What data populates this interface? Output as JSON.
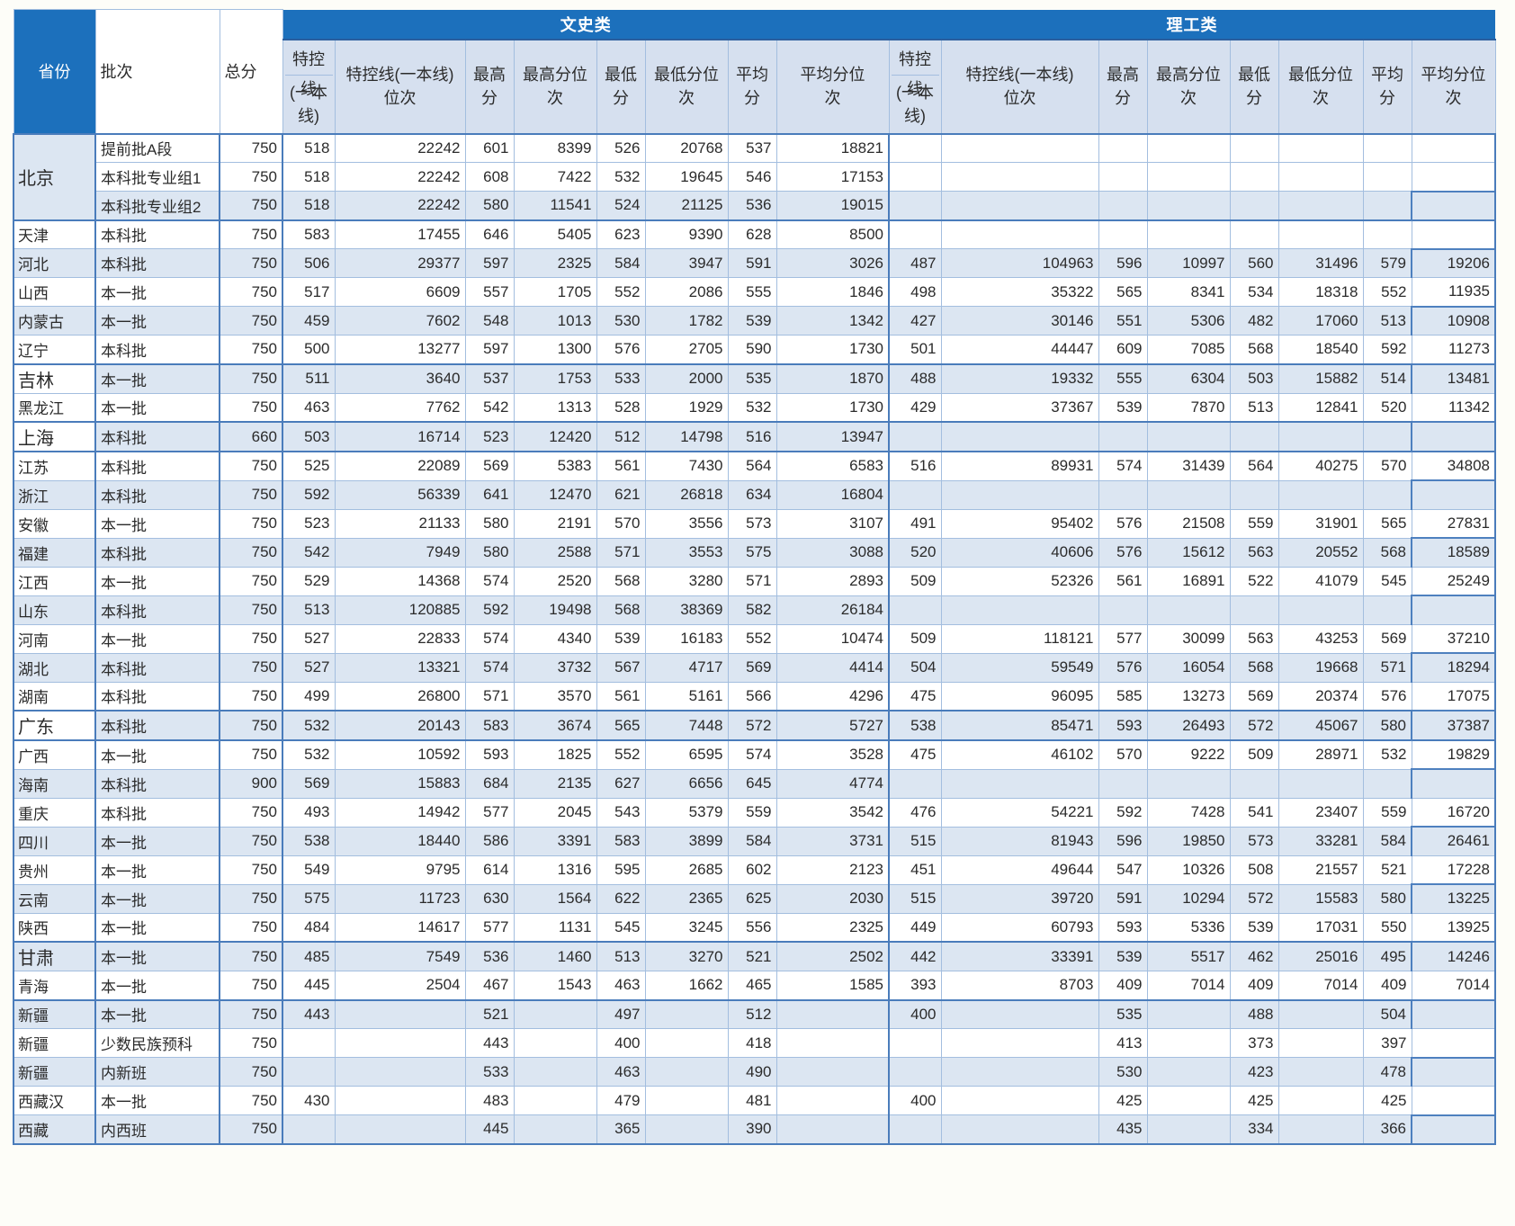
{
  "colors": {
    "band_blue": "#1c70bc",
    "band_underline": "#2b5e9e",
    "subheader_bg": "#d6e0ef",
    "row_blue": "#dce6f2",
    "border_light": "#a3bedf",
    "border_medium": "#4a7cbb",
    "band_text": "#ffffff",
    "body_text": "#2b2b2b"
  },
  "header": {
    "province_label": "省份",
    "batch_label": "批次",
    "total_label": "总分",
    "group_wen": "文史类",
    "group_li": "理工类",
    "sub": {
      "tekong_top": "特控线",
      "tekong_bottom": "(一本线)",
      "tekong_rank": "特控线(一本线)位次",
      "max": "最高分",
      "max_rank": "最高分位次",
      "min": "最低分",
      "min_rank": "最低分位次",
      "avg": "平均分",
      "avg_rank": "平均分位次"
    }
  },
  "rows": [
    {
      "province": "北京",
      "province_rowspan": 3,
      "province_bg": "blue",
      "province_emphasis": true,
      "batch": "提前批A段",
      "total": 750,
      "shade": "white",
      "block_start": false,
      "wen": [
        518,
        22242,
        601,
        8399,
        526,
        20768,
        537,
        18821
      ],
      "li": [
        "",
        "",
        "",
        "",
        "",
        "",
        "",
        ""
      ]
    },
    {
      "batch": "本科批专业组1",
      "total": 750,
      "shade": "white",
      "block_start": false,
      "wen": [
        518,
        22242,
        608,
        7422,
        532,
        19645,
        546,
        17153
      ],
      "li": [
        "",
        "",
        "",
        "",
        "",
        "",
        "",
        ""
      ]
    },
    {
      "batch": "本科批专业组2",
      "total": 750,
      "shade": "blue",
      "block_start": false,
      "wen": [
        518,
        22242,
        580,
        11541,
        524,
        21125,
        536,
        19015
      ],
      "li": [
        "",
        "",
        "",
        "",
        "",
        "",
        "",
        ""
      ]
    },
    {
      "province": "天津",
      "batch": "本科批",
      "total": 750,
      "shade": "white",
      "block_start": true,
      "wen": [
        583,
        17455,
        646,
        5405,
        623,
        9390,
        628,
        8500
      ],
      "li": [
        "",
        "",
        "",
        "",
        "",
        "",
        "",
        ""
      ]
    },
    {
      "province": "河北",
      "batch": "本科批",
      "total": 750,
      "shade": "blue",
      "block_start": false,
      "wen": [
        506,
        29377,
        597,
        2325,
        584,
        3947,
        591,
        3026
      ],
      "li": [
        487,
        104963,
        596,
        10997,
        560,
        31496,
        579,
        19206
      ]
    },
    {
      "province": "山西",
      "batch": "本一批",
      "total": 750,
      "shade": "white",
      "block_start": false,
      "wen": [
        517,
        6609,
        557,
        1705,
        552,
        2086,
        555,
        1846
      ],
      "li": [
        498,
        35322,
        565,
        8341,
        534,
        18318,
        552,
        11935
      ]
    },
    {
      "province": "内蒙古",
      "batch": "本一批",
      "total": 750,
      "shade": "blue",
      "block_start": false,
      "wen": [
        459,
        7602,
        548,
        1013,
        530,
        1782,
        539,
        1342
      ],
      "li": [
        427,
        30146,
        551,
        5306,
        482,
        17060,
        513,
        10908
      ]
    },
    {
      "province": "辽宁",
      "batch": "本科批",
      "total": 750,
      "shade": "white",
      "block_start": false,
      "wen": [
        500,
        13277,
        597,
        1300,
        576,
        2705,
        590,
        1730
      ],
      "li": [
        501,
        44447,
        609,
        7085,
        568,
        18540,
        592,
        11273
      ]
    },
    {
      "province": "吉林",
      "province_bg": "white",
      "province_emphasis": true,
      "batch": "本一批",
      "total": 750,
      "shade": "blue",
      "block_start": true,
      "wen": [
        511,
        3640,
        537,
        1753,
        533,
        2000,
        535,
        1870
      ],
      "li": [
        488,
        19332,
        555,
        6304,
        503,
        15882,
        514,
        13481
      ]
    },
    {
      "province": "黑龙江",
      "batch": "本一批",
      "total": 750,
      "shade": "white",
      "block_start": false,
      "wen": [
        463,
        7762,
        542,
        1313,
        528,
        1929,
        532,
        1730
      ],
      "li": [
        429,
        37367,
        539,
        7870,
        513,
        12841,
        520,
        11342
      ]
    },
    {
      "province": "上海",
      "province_bg": "white",
      "province_emphasis": true,
      "batch": "本科批",
      "total": 660,
      "shade": "blue",
      "block_start": true,
      "wen": [
        503,
        16714,
        523,
        12420,
        512,
        14798,
        516,
        13947
      ],
      "li": [
        "",
        "",
        "",
        "",
        "",
        "",
        "",
        ""
      ]
    },
    {
      "province": "江苏",
      "batch": "本科批",
      "total": 750,
      "shade": "white",
      "block_start": true,
      "wen": [
        525,
        22089,
        569,
        5383,
        561,
        7430,
        564,
        6583
      ],
      "li": [
        516,
        89931,
        574,
        31439,
        564,
        40275,
        570,
        34808
      ]
    },
    {
      "province": "浙江",
      "batch": "本科批",
      "total": 750,
      "shade": "blue",
      "block_start": false,
      "wen": [
        592,
        56339,
        641,
        12470,
        621,
        26818,
        634,
        16804
      ],
      "li": [
        "",
        "",
        "",
        "",
        "",
        "",
        "",
        ""
      ]
    },
    {
      "province": "安徽",
      "batch": "本一批",
      "total": 750,
      "shade": "white",
      "block_start": false,
      "wen": [
        523,
        21133,
        580,
        2191,
        570,
        3556,
        573,
        3107
      ],
      "li": [
        491,
        95402,
        576,
        21508,
        559,
        31901,
        565,
        27831
      ]
    },
    {
      "province": "福建",
      "batch": "本科批",
      "total": 750,
      "shade": "blue",
      "block_start": false,
      "wen": [
        542,
        7949,
        580,
        2588,
        571,
        3553,
        575,
        3088
      ],
      "li": [
        520,
        40606,
        576,
        15612,
        563,
        20552,
        568,
        18589
      ]
    },
    {
      "province": "江西",
      "batch": "本一批",
      "total": 750,
      "shade": "white",
      "block_start": false,
      "wen": [
        529,
        14368,
        574,
        2520,
        568,
        3280,
        571,
        2893
      ],
      "li": [
        509,
        52326,
        561,
        16891,
        522,
        41079,
        545,
        25249
      ]
    },
    {
      "province": "山东",
      "batch": "本科批",
      "total": 750,
      "shade": "blue",
      "block_start": false,
      "wen": [
        513,
        120885,
        592,
        19498,
        568,
        38369,
        582,
        26184
      ],
      "li": [
        "",
        "",
        "",
        "",
        "",
        "",
        "",
        ""
      ]
    },
    {
      "province": "河南",
      "batch": "本一批",
      "total": 750,
      "shade": "white",
      "block_start": false,
      "wen": [
        527,
        22833,
        574,
        4340,
        539,
        16183,
        552,
        10474
      ],
      "li": [
        509,
        118121,
        577,
        30099,
        563,
        43253,
        569,
        37210
      ]
    },
    {
      "province": "湖北",
      "batch": "本科批",
      "total": 750,
      "shade": "blue",
      "block_start": false,
      "wen": [
        527,
        13321,
        574,
        3732,
        567,
        4717,
        569,
        4414
      ],
      "li": [
        504,
        59549,
        576,
        16054,
        568,
        19668,
        571,
        18294
      ]
    },
    {
      "province": "湖南",
      "batch": "本科批",
      "total": 750,
      "shade": "white",
      "block_start": false,
      "wen": [
        499,
        26800,
        571,
        3570,
        561,
        5161,
        566,
        4296
      ],
      "li": [
        475,
        96095,
        585,
        13273,
        569,
        20374,
        576,
        17075
      ]
    },
    {
      "province": "广东",
      "province_bg": "white",
      "province_emphasis": true,
      "batch": "本科批",
      "total": 750,
      "shade": "blue",
      "block_start": true,
      "wen": [
        532,
        20143,
        583,
        3674,
        565,
        7448,
        572,
        5727
      ],
      "li": [
        538,
        85471,
        593,
        26493,
        572,
        45067,
        580,
        37387
      ]
    },
    {
      "province": "广西",
      "batch": "本一批",
      "total": 750,
      "shade": "white",
      "block_start": true,
      "wen": [
        532,
        10592,
        593,
        1825,
        552,
        6595,
        574,
        3528
      ],
      "li": [
        475,
        46102,
        570,
        9222,
        509,
        28971,
        532,
        19829
      ]
    },
    {
      "province": "海南",
      "batch": "本科批",
      "total": 900,
      "shade": "blue",
      "block_start": false,
      "wen": [
        569,
        15883,
        684,
        2135,
        627,
        6656,
        645,
        4774
      ],
      "li": [
        "",
        "",
        "",
        "",
        "",
        "",
        "",
        ""
      ]
    },
    {
      "province": "重庆",
      "batch": "本科批",
      "total": 750,
      "shade": "white",
      "block_start": false,
      "wen": [
        493,
        14942,
        577,
        2045,
        543,
        5379,
        559,
        3542
      ],
      "li": [
        476,
        54221,
        592,
        7428,
        541,
        23407,
        559,
        16720
      ]
    },
    {
      "province": "四川",
      "batch": "本一批",
      "total": 750,
      "shade": "blue",
      "block_start": false,
      "wen": [
        538,
        18440,
        586,
        3391,
        583,
        3899,
        584,
        3731
      ],
      "li": [
        515,
        81943,
        596,
        19850,
        573,
        33281,
        584,
        26461
      ]
    },
    {
      "province": "贵州",
      "batch": "本一批",
      "total": 750,
      "shade": "white",
      "block_start": false,
      "wen": [
        549,
        9795,
        614,
        1316,
        595,
        2685,
        602,
        2123
      ],
      "li": [
        451,
        49644,
        547,
        10326,
        508,
        21557,
        521,
        17228
      ]
    },
    {
      "province": "云南",
      "batch": "本一批",
      "total": 750,
      "shade": "blue",
      "block_start": false,
      "wen": [
        575,
        11723,
        630,
        1564,
        622,
        2365,
        625,
        2030
      ],
      "li": [
        515,
        39720,
        591,
        10294,
        572,
        15583,
        580,
        13225
      ]
    },
    {
      "province": "陕西",
      "batch": "本一批",
      "total": 750,
      "shade": "white",
      "block_start": false,
      "wen": [
        484,
        14617,
        577,
        1131,
        545,
        3245,
        556,
        2325
      ],
      "li": [
        449,
        60793,
        593,
        5336,
        539,
        17031,
        550,
        13925
      ]
    },
    {
      "province": "甘肃",
      "province_emphasis": true,
      "batch": "本一批",
      "total": 750,
      "shade": "blue",
      "block_start": true,
      "wen": [
        485,
        7549,
        536,
        1460,
        513,
        3270,
        521,
        2502
      ],
      "li": [
        442,
        33391,
        539,
        5517,
        462,
        25016,
        495,
        14246
      ]
    },
    {
      "province": "青海",
      "batch": "本一批",
      "total": 750,
      "shade": "white",
      "block_start": false,
      "wen": [
        445,
        2504,
        467,
        1543,
        463,
        1662,
        465,
        1585
      ],
      "li": [
        393,
        8703,
        409,
        7014,
        409,
        7014,
        409,
        7014
      ]
    },
    {
      "province": "新疆",
      "batch": "本一批",
      "total": 750,
      "shade": "blue",
      "block_start": true,
      "wen": [
        443,
        "",
        521,
        "",
        497,
        "",
        512,
        ""
      ],
      "li": [
        400,
        "",
        535,
        "",
        488,
        "",
        504,
        ""
      ]
    },
    {
      "province": "新疆",
      "batch": "少数民族预科",
      "total": 750,
      "shade": "white",
      "block_start": false,
      "wen": [
        "",
        "",
        443,
        "",
        400,
        "",
        418,
        ""
      ],
      "li": [
        "",
        "",
        413,
        "",
        373,
        "",
        397,
        ""
      ]
    },
    {
      "province": "新疆",
      "batch": "内新班",
      "total": 750,
      "shade": "blue",
      "block_start": false,
      "wen": [
        "",
        "",
        533,
        "",
        463,
        "",
        490,
        ""
      ],
      "li": [
        "",
        "",
        530,
        "",
        423,
        "",
        478,
        ""
      ]
    },
    {
      "province": "西藏汉",
      "batch": "本一批",
      "total": 750,
      "shade": "white",
      "block_start": false,
      "wen": [
        430,
        "",
        483,
        "",
        479,
        "",
        481,
        ""
      ],
      "li": [
        400,
        "",
        425,
        "",
        425,
        "",
        425,
        ""
      ]
    },
    {
      "province": "西藏",
      "batch": "内西班",
      "total": 750,
      "shade": "blue",
      "block_start": false,
      "wen": [
        "",
        "",
        445,
        "",
        365,
        "",
        390,
        ""
      ],
      "li": [
        "",
        "",
        435,
        "",
        334,
        "",
        366,
        ""
      ]
    }
  ]
}
